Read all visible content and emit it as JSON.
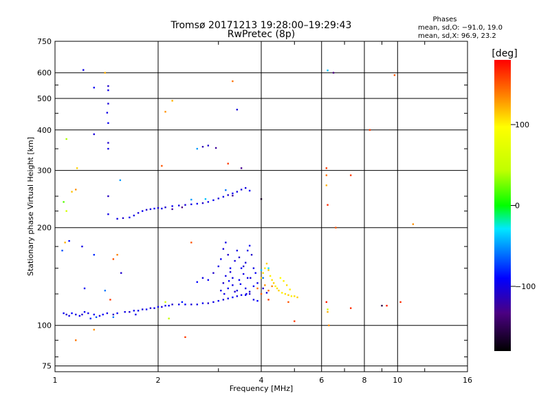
{
  "chart_data": {
    "type": "scatter",
    "title": "Tromsø 20171213 19:28:00–19:29:43",
    "subtitle": "RwPretec (8p)",
    "xlabel": "Frequency [MHz]",
    "ylabel": "Stationary phase Virtual Height [km]",
    "x_scale": "log2",
    "y_scale": "log",
    "xlim": [
      1,
      16
    ],
    "ylim": [
      72,
      750
    ],
    "x_ticks": [
      1,
      2,
      4,
      6,
      8,
      10,
      16
    ],
    "x_tick_labels": [
      "1",
      "2",
      "4",
      "6",
      "8",
      "10",
      "16"
    ],
    "y_ticks": [
      75,
      100,
      200,
      300,
      400,
      500,
      600,
      750
    ],
    "y_tick_labels": [
      "75",
      "100",
      "200",
      "300",
      "400",
      "500",
      "600",
      "750"
    ],
    "grid": true,
    "stats": {
      "heading": "Phases",
      "line1": "mean, sd,O: −91.0, 19.0",
      "line2": "mean, sd,X:  96.9, 23.2"
    },
    "colorbar": {
      "label": "[deg]",
      "range": [
        -180,
        180
      ],
      "ticks": [
        -100,
        0,
        100
      ],
      "tick_labels": [
        "−100",
        "0",
        "100"
      ]
    },
    "series": [
      {
        "points": [
          [
            1.06,
            109,
            -95
          ],
          [
            1.08,
            108,
            -110
          ],
          [
            1.1,
            107,
            -100
          ],
          [
            1.12,
            109,
            -90
          ],
          [
            1.15,
            108,
            -105
          ],
          [
            1.18,
            107,
            -95
          ],
          [
            1.2,
            108,
            -110
          ],
          [
            1.25,
            109,
            -100
          ],
          [
            1.3,
            108,
            -95
          ],
          [
            1.35,
            107,
            -105
          ],
          [
            1.38,
            108,
            -90
          ],
          [
            1.42,
            109,
            -100
          ],
          [
            1.48,
            108,
            -110
          ],
          [
            1.52,
            109,
            -95
          ],
          [
            1.6,
            110,
            -100
          ],
          [
            1.65,
            110,
            -110
          ],
          [
            1.7,
            111,
            -95
          ],
          [
            1.75,
            111,
            -100
          ],
          [
            1.8,
            112,
            -105
          ],
          [
            1.85,
            112,
            -95
          ],
          [
            1.9,
            113,
            -110
          ],
          [
            1.95,
            113,
            -100
          ],
          [
            2.0,
            114,
            -95
          ],
          [
            2.05,
            114,
            -105
          ],
          [
            2.1,
            115,
            -100
          ],
          [
            2.15,
            115,
            -95
          ],
          [
            2.2,
            116,
            -110
          ],
          [
            2.3,
            116,
            -100
          ],
          [
            2.4,
            116,
            -95
          ],
          [
            2.5,
            116,
            -105
          ],
          [
            2.6,
            116,
            -100
          ],
          [
            2.7,
            117,
            -95
          ],
          [
            2.8,
            117,
            -110
          ],
          [
            2.9,
            118,
            -100
          ],
          [
            3.0,
            119,
            -95
          ],
          [
            3.1,
            120,
            -105
          ],
          [
            3.2,
            121,
            -100
          ],
          [
            3.3,
            122,
            -90
          ],
          [
            3.4,
            123,
            -100
          ],
          [
            3.6,
            124,
            -95
          ],
          [
            3.7,
            125,
            -110
          ],
          [
            3.8,
            120,
            -100
          ],
          [
            3.9,
            119,
            -90
          ],
          [
            1.27,
            105,
            -80
          ],
          [
            1.32,
            106,
            -70
          ],
          [
            1.48,
            106,
            -60
          ],
          [
            1.22,
            110,
            -95
          ],
          [
            1.72,
            108,
            -100
          ],
          [
            2.35,
            118,
            -85
          ],
          [
            2.6,
            136,
            -90
          ],
          [
            2.7,
            140,
            -100
          ],
          [
            2.8,
            138,
            -95
          ],
          [
            2.9,
            145,
            -110
          ],
          [
            3.0,
            152,
            -100
          ],
          [
            3.05,
            160,
            -95
          ],
          [
            3.1,
            172,
            -105
          ],
          [
            3.15,
            180,
            -100
          ],
          [
            3.2,
            165,
            -110
          ],
          [
            3.25,
            150,
            -95
          ],
          [
            3.3,
            140,
            -100
          ],
          [
            3.35,
            158,
            -105
          ],
          [
            3.4,
            170,
            -100
          ],
          [
            3.45,
            162,
            -110
          ],
          [
            3.5,
            150,
            -95
          ],
          [
            3.55,
            144,
            -100
          ],
          [
            3.6,
            156,
            -105
          ],
          [
            3.65,
            170,
            -100
          ],
          [
            3.7,
            176,
            -95
          ],
          [
            3.75,
            165,
            -110
          ],
          [
            3.8,
            150,
            -100
          ],
          [
            3.05,
            128,
            -100
          ],
          [
            3.1,
            135,
            -110
          ],
          [
            3.2,
            130,
            -95
          ],
          [
            3.3,
            133,
            -100
          ],
          [
            3.4,
            128,
            -105
          ],
          [
            3.5,
            124,
            -95
          ],
          [
            3.6,
            130,
            -100
          ],
          [
            3.7,
            127,
            -110
          ],
          [
            3.8,
            132,
            -95
          ],
          [
            3.15,
            142,
            -100
          ],
          [
            3.25,
            146,
            -105
          ],
          [
            3.45,
            138,
            -95
          ],
          [
            3.55,
            152,
            -110
          ],
          [
            3.65,
            140,
            -100
          ],
          [
            3.12,
            125,
            -100
          ],
          [
            3.22,
            137,
            -90
          ],
          [
            3.35,
            127,
            -110
          ],
          [
            3.48,
            134,
            -95
          ],
          [
            3.62,
            125,
            -100
          ],
          [
            3.72,
            140,
            -105
          ],
          [
            3.85,
            145,
            -95
          ],
          [
            3.9,
            135,
            -100
          ],
          [
            4.05,
            130,
            -110
          ],
          [
            4.15,
            126,
            -100
          ],
          [
            4.0,
            148,
            -40
          ],
          [
            4.05,
            140,
            -60
          ],
          [
            4.2,
            150,
            -30
          ],
          [
            4.0,
            140,
            110
          ],
          [
            4.05,
            145,
            105
          ],
          [
            4.1,
            150,
            100
          ],
          [
            4.15,
            155,
            110
          ],
          [
            4.2,
            148,
            115
          ],
          [
            4.25,
            142,
            100
          ],
          [
            4.3,
            138,
            105
          ],
          [
            4.35,
            135,
            110
          ],
          [
            4.4,
            132,
            100
          ],
          [
            4.45,
            130,
            105
          ],
          [
            4.5,
            128,
            110
          ],
          [
            4.6,
            126,
            100
          ],
          [
            4.7,
            125,
            105
          ],
          [
            4.8,
            124,
            110
          ],
          [
            4.9,
            123,
            100
          ],
          [
            5.0,
            123,
            105
          ],
          [
            5.1,
            122,
            110
          ],
          [
            4.55,
            140,
            95
          ],
          [
            4.65,
            137,
            100
          ],
          [
            4.75,
            133,
            105
          ],
          [
            4.85,
            129,
            100
          ],
          [
            3.9,
            130,
            140
          ],
          [
            4.0,
            125,
            150
          ],
          [
            4.1,
            133,
            130
          ],
          [
            4.2,
            128,
            145
          ],
          [
            4.3,
            132,
            135
          ],
          [
            4.8,
            118,
            150
          ],
          [
            1.52,
            213,
            -100
          ],
          [
            1.58,
            214,
            -110
          ],
          [
            1.65,
            215,
            -95
          ],
          [
            1.7,
            218,
            -100
          ],
          [
            1.75,
            222,
            -105
          ],
          [
            1.8,
            225,
            -95
          ],
          [
            1.85,
            227,
            -110
          ],
          [
            1.9,
            228,
            -100
          ],
          [
            1.95,
            229,
            -95
          ],
          [
            2.0,
            230,
            -105
          ],
          [
            2.05,
            229,
            -100
          ],
          [
            2.1,
            231,
            -110
          ],
          [
            2.2,
            233,
            -95
          ],
          [
            2.3,
            234,
            -100
          ],
          [
            2.4,
            235,
            -105
          ],
          [
            2.5,
            236,
            -100
          ],
          [
            2.6,
            237,
            -95
          ],
          [
            2.7,
            238,
            -110
          ],
          [
            2.8,
            240,
            -100
          ],
          [
            2.9,
            243,
            -95
          ],
          [
            3.0,
            246,
            -105
          ],
          [
            3.1,
            249,
            -100
          ],
          [
            3.2,
            252,
            -110
          ],
          [
            3.3,
            255,
            -95
          ],
          [
            3.4,
            258,
            -100
          ],
          [
            3.5,
            262,
            -105
          ],
          [
            3.6,
            265,
            -100
          ],
          [
            3.7,
            260,
            -95
          ],
          [
            2.5,
            244,
            -50
          ],
          [
            2.75,
            245,
            -40
          ],
          [
            3.15,
            261,
            -60
          ],
          [
            2.2,
            228,
            -130
          ],
          [
            2.35,
            231,
            -140
          ],
          [
            3.3,
            251,
            -130
          ],
          [
            2.7,
            355,
            -120
          ],
          [
            2.8,
            358,
            -110
          ],
          [
            2.95,
            352,
            -130
          ],
          [
            3.5,
            305,
            -135
          ],
          [
            3.4,
            462,
            -105
          ],
          [
            2.6,
            350,
            -50
          ],
          [
            1.21,
            612,
            -100
          ],
          [
            1.3,
            540,
            -95
          ],
          [
            1.43,
            546,
            -110
          ],
          [
            1.43,
            530,
            -100
          ],
          [
            1.43,
            482,
            -105
          ],
          [
            1.42,
            452,
            -100
          ],
          [
            1.43,
            420,
            -95
          ],
          [
            1.43,
            365,
            -110
          ],
          [
            1.43,
            350,
            -100
          ],
          [
            1.3,
            388,
            -105
          ],
          [
            1.43,
            250,
            -115
          ],
          [
            1.43,
            220,
            -100
          ],
          [
            1.55,
            280,
            -50
          ],
          [
            4.0,
            245,
            -170
          ],
          [
            6.25,
            610,
            -40
          ],
          [
            6.5,
            600,
            -140
          ],
          [
            1.1,
            182,
            -90
          ],
          [
            1.2,
            175,
            -100
          ],
          [
            1.3,
            165,
            -80
          ],
          [
            1.05,
            170,
            -70
          ],
          [
            1.22,
            130,
            -95
          ],
          [
            1.56,
            145,
            -110
          ],
          [
            1.4,
            128,
            -60
          ],
          [
            1.07,
            180,
            120
          ],
          [
            1.15,
            262,
            130
          ],
          [
            1.12,
            258,
            115
          ],
          [
            1.06,
            240,
            20
          ],
          [
            1.08,
            375,
            40
          ],
          [
            1.16,
            305,
            110
          ],
          [
            1.08,
            225,
            60
          ],
          [
            1.48,
            160,
            150
          ],
          [
            1.45,
            120,
            160
          ],
          [
            1.52,
            165,
            135
          ],
          [
            1.3,
            97,
            130
          ],
          [
            2.05,
            310,
            150
          ],
          [
            2.1,
            455,
            130
          ],
          [
            2.2,
            492,
            120
          ],
          [
            3.3,
            565,
            140
          ],
          [
            8.3,
            400,
            160
          ],
          [
            9.8,
            590,
            150
          ],
          [
            11.1,
            205,
            130
          ],
          [
            2.5,
            180,
            150
          ],
          [
            3.2,
            315,
            160
          ],
          [
            1.15,
            90,
            140
          ],
          [
            1.4,
            600,
            120
          ],
          [
            2.1,
            118,
            60
          ],
          [
            2.15,
            105,
            50
          ],
          [
            2.4,
            92,
            160
          ],
          [
            6.2,
            305,
            160
          ],
          [
            6.2,
            290,
            140
          ],
          [
            6.2,
            270,
            120
          ],
          [
            6.25,
            235,
            165
          ],
          [
            6.2,
            118,
            170
          ],
          [
            6.25,
            112,
            60
          ],
          [
            6.25,
            110,
            120
          ],
          [
            6.3,
            100,
            130
          ],
          [
            6.6,
            200,
            150
          ],
          [
            7.3,
            290,
            160
          ],
          [
            7.3,
            113,
            165
          ],
          [
            9.0,
            115,
            -160
          ],
          [
            9.3,
            115,
            170
          ],
          [
            10.2,
            118,
            165
          ],
          [
            5.0,
            103,
            160
          ],
          [
            4.2,
            120,
            160
          ]
        ]
      }
    ]
  }
}
